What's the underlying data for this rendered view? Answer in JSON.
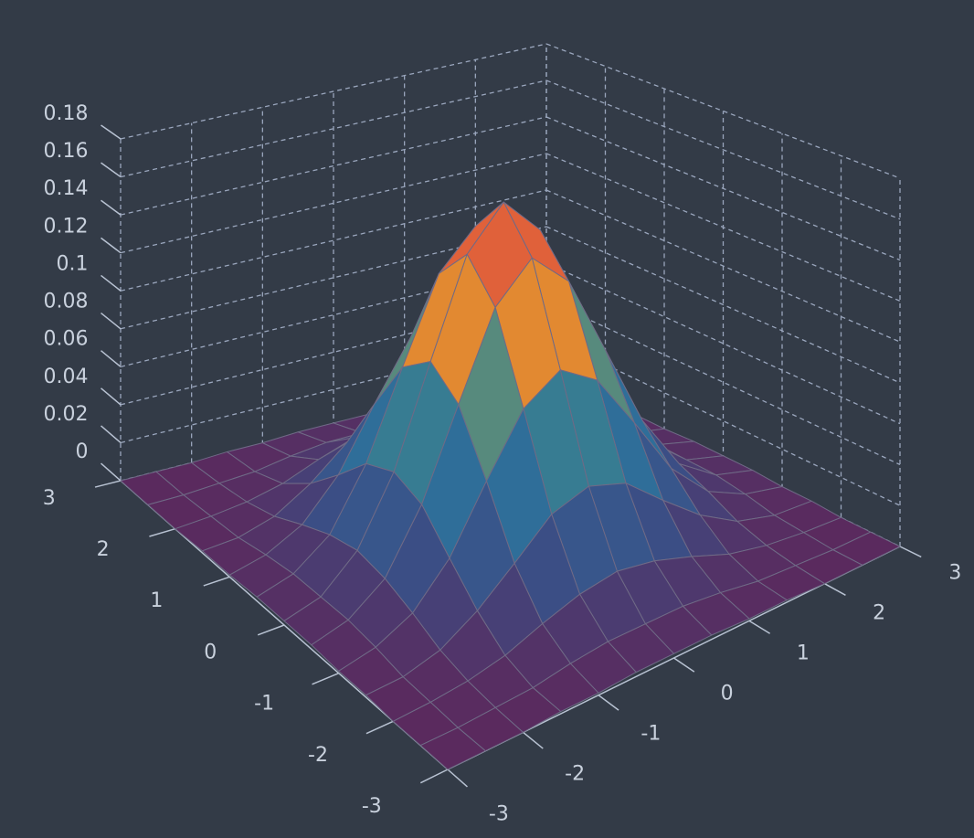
{
  "chart_data": {
    "type": "surface",
    "x": [
      -3,
      -2.5,
      -2,
      -1.5,
      -1,
      -0.5,
      0,
      0.5,
      1,
      1.5,
      2,
      2.5,
      3
    ],
    "y": [
      -3,
      -2.5,
      -2,
      -1.5,
      -1,
      -0.5,
      0,
      0.5,
      1,
      1.5,
      2,
      2.5,
      3
    ],
    "z": [
      [
        0,
        0,
        0,
        0.001,
        0.001,
        0.002,
        0.002,
        0.002,
        0.001,
        0.001,
        0,
        0,
        0
      ],
      [
        0,
        0,
        0.001,
        0.002,
        0.005,
        0.007,
        0.007,
        0.007,
        0.005,
        0.002,
        0.001,
        0,
        0
      ],
      [
        0,
        0.001,
        0.003,
        0.007,
        0.014,
        0.02,
        0.023,
        0.02,
        0.014,
        0.007,
        0.003,
        0.001,
        0
      ],
      [
        0.001,
        0.002,
        0.007,
        0.018,
        0.033,
        0.049,
        0.055,
        0.049,
        0.033,
        0.018,
        0.007,
        0.002,
        0.001
      ],
      [
        0.001,
        0.005,
        0.014,
        0.033,
        0.063,
        0.091,
        0.103,
        0.091,
        0.063,
        0.033,
        0.014,
        0.005,
        0.001
      ],
      [
        0.002,
        0.007,
        0.02,
        0.049,
        0.091,
        0.132,
        0.15,
        0.132,
        0.091,
        0.049,
        0.02,
        0.007,
        0.002
      ],
      [
        0.002,
        0.007,
        0.023,
        0.055,
        0.103,
        0.15,
        0.17,
        0.15,
        0.103,
        0.055,
        0.023,
        0.007,
        0.002
      ],
      [
        0.002,
        0.007,
        0.02,
        0.049,
        0.091,
        0.132,
        0.15,
        0.132,
        0.091,
        0.049,
        0.02,
        0.007,
        0.002
      ],
      [
        0.001,
        0.005,
        0.014,
        0.033,
        0.063,
        0.091,
        0.103,
        0.091,
        0.063,
        0.033,
        0.014,
        0.005,
        0.001
      ],
      [
        0.001,
        0.002,
        0.007,
        0.018,
        0.033,
        0.049,
        0.055,
        0.049,
        0.033,
        0.018,
        0.007,
        0.002,
        0.001
      ],
      [
        0,
        0.001,
        0.003,
        0.007,
        0.014,
        0.02,
        0.023,
        0.02,
        0.014,
        0.007,
        0.003,
        0.001,
        0
      ],
      [
        0,
        0,
        0.001,
        0.002,
        0.005,
        0.007,
        0.007,
        0.007,
        0.005,
        0.002,
        0.001,
        0,
        0
      ],
      [
        0,
        0,
        0,
        0.001,
        0.001,
        0.002,
        0.002,
        0.002,
        0.001,
        0.001,
        0,
        0,
        0
      ]
    ],
    "xlim": [
      -3,
      3
    ],
    "ylim": [
      -3,
      3
    ],
    "zlim": [
      0,
      0.18
    ],
    "xticks": [
      -3,
      -2,
      -1,
      0,
      1,
      2,
      3
    ],
    "yticks": [
      -3,
      -2,
      -1,
      0,
      1,
      2,
      3
    ],
    "zticks": [
      0,
      0.02,
      0.04,
      0.06,
      0.08,
      0.1,
      0.12,
      0.14,
      0.16,
      0.18
    ],
    "colorscale": [
      "#5a2a5e",
      "#3a4f86",
      "#2f6f9a",
      "#3f8a8a",
      "#e8892e",
      "#e0623a",
      "#d33448"
    ],
    "grid": true
  }
}
